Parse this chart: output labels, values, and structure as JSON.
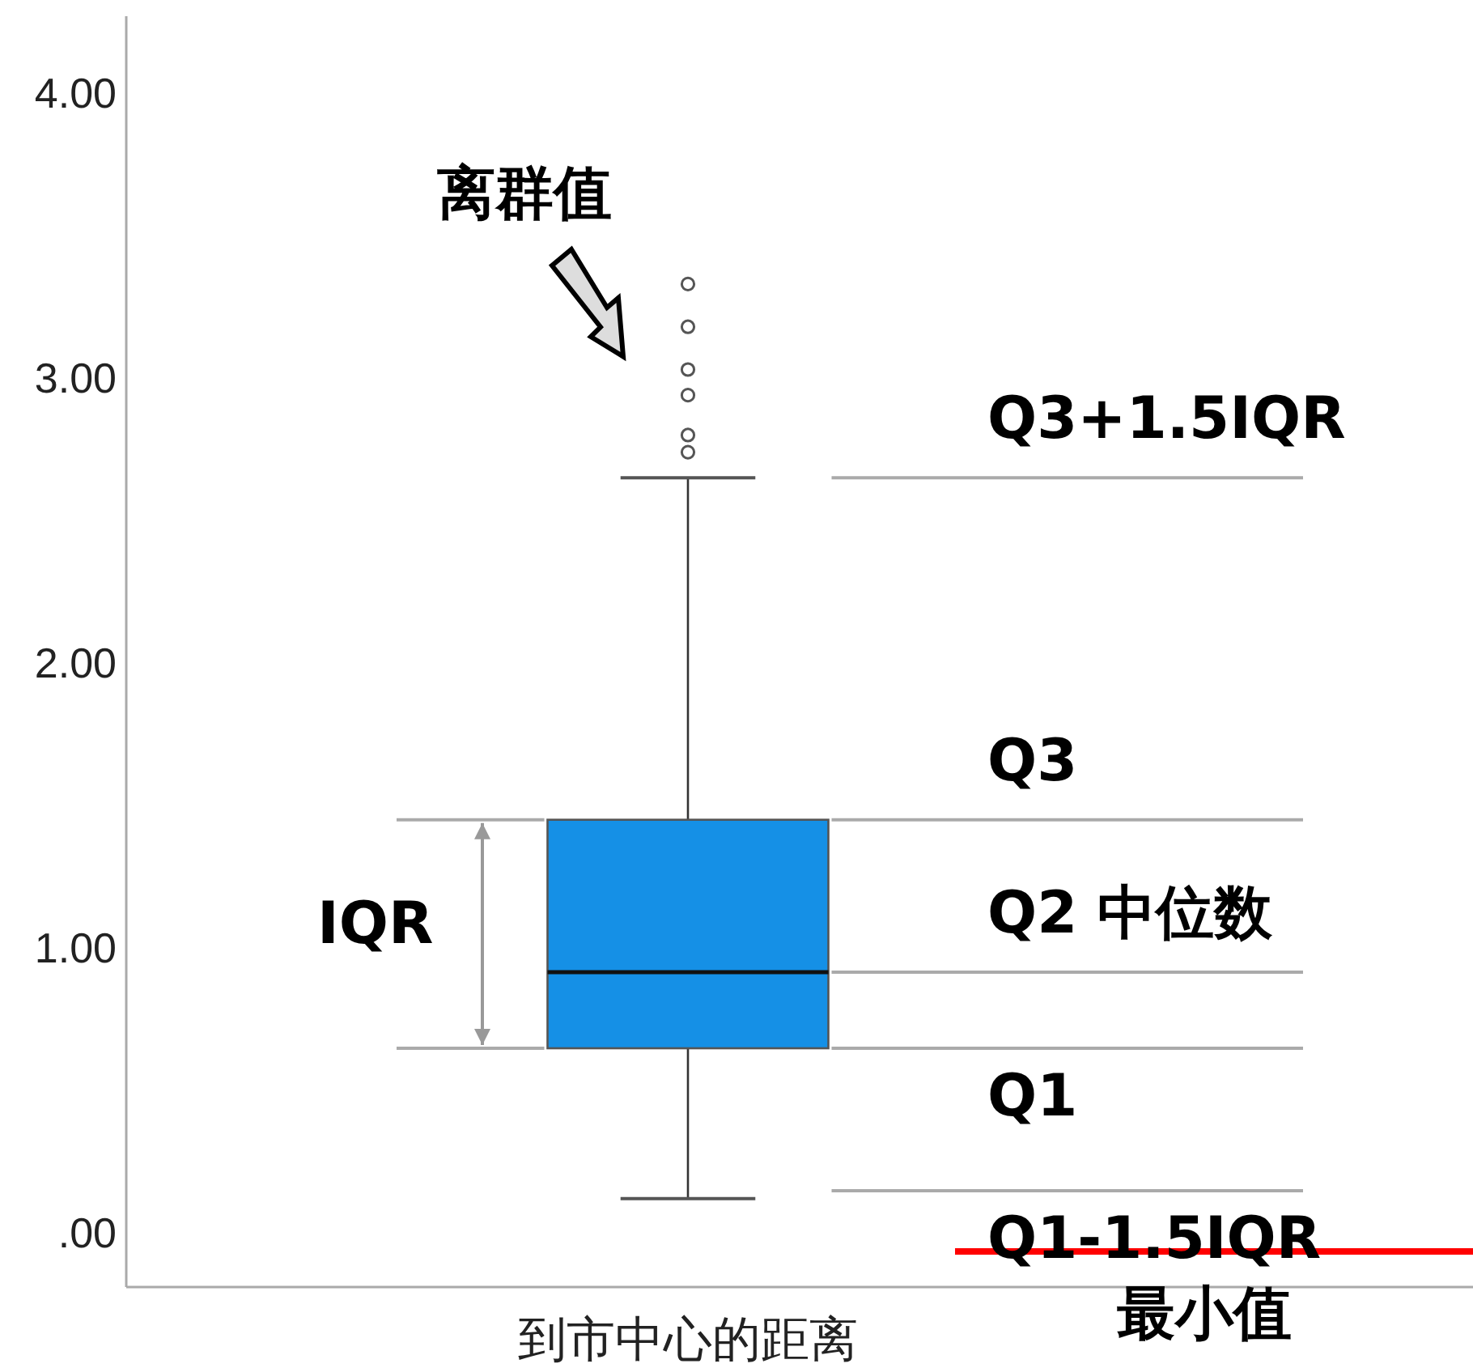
{
  "chart_data": {
    "type": "box",
    "categories": [
      "到市中心的距离"
    ],
    "color": "#1590e6",
    "boxes": [
      {
        "low": 0.12,
        "q1": 0.648,
        "median": 0.915,
        "q3": 1.45,
        "high": 2.65,
        "outliers": [
          3.33,
          3.18,
          3.03,
          2.94,
          2.8,
          2.74
        ]
      }
    ],
    "ylim": [
      -0.19,
      4.27
    ],
    "yticks": [
      {
        "value": 0,
        "label": ".00"
      },
      {
        "value": 1,
        "label": "1.00"
      },
      {
        "value": 2,
        "label": "2.00"
      },
      {
        "value": 3,
        "label": "3.00"
      },
      {
        "value": 4,
        "label": "4.00"
      }
    ],
    "ref_lines": [
      {
        "axis": "y",
        "value": 2.65,
        "label": "Q3+1.5IQR"
      },
      {
        "axis": "y",
        "value": 1.45,
        "label": "Q3"
      },
      {
        "axis": "y",
        "value": 0.915,
        "label": "Q2 中位数"
      },
      {
        "axis": "y",
        "value": 0.648,
        "label": "Q1"
      },
      {
        "axis": "y",
        "value": 0.148,
        "label": "Q1-1.5IQR"
      }
    ],
    "annotations": [
      "离群值",
      "IQR",
      "最小值"
    ]
  }
}
